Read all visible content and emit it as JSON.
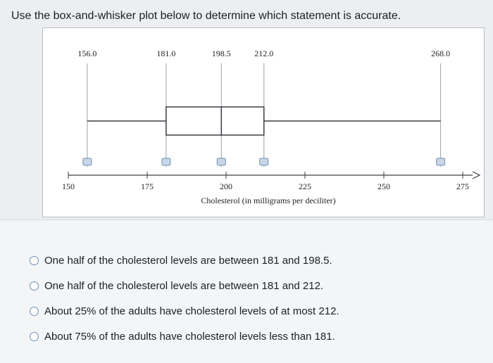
{
  "question": {
    "prompt": "Use the box-and-whisker plot below to determine which statement is accurate."
  },
  "chart_data": {
    "type": "boxplot",
    "xlabel": "Cholesterol (in milligrams per deciliter)",
    "xlim": [
      150,
      275
    ],
    "xticks": [
      "150",
      "175",
      "200",
      "225",
      "250",
      "275"
    ],
    "xtick_values": [
      150,
      175,
      200,
      225,
      250,
      275
    ],
    "five_number_summary": {
      "min": 156.0,
      "q1": 181.0,
      "median": 198.5,
      "q3": 212.0,
      "max": 268.0
    },
    "value_labels": [
      "156.0",
      "181.0",
      "198.5",
      "212.0",
      "268.0"
    ],
    "label_values": [
      156.0,
      181.0,
      198.5,
      212.0,
      268.0
    ]
  },
  "answers": {
    "options": [
      "One half of the cholesterol levels are between 181 and 198.5.",
      "One half of the cholesterol levels are between 181 and 212.",
      "About 25% of the adults have cholesterol levels of at most 212.",
      "About 75% of the adults have cholesterol levels less than 181."
    ]
  }
}
